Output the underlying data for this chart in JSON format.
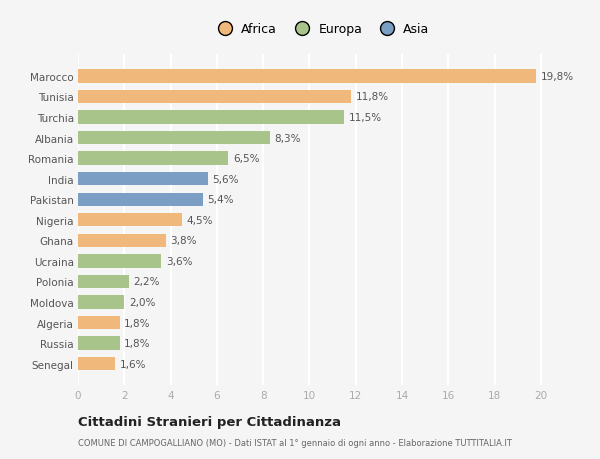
{
  "categories": [
    "Senegal",
    "Russia",
    "Algeria",
    "Moldova",
    "Polonia",
    "Ucraina",
    "Ghana",
    "Nigeria",
    "Pakistan",
    "India",
    "Romania",
    "Albania",
    "Turchia",
    "Tunisia",
    "Marocco"
  ],
  "values": [
    1.6,
    1.8,
    1.8,
    2.0,
    2.2,
    3.6,
    3.8,
    4.5,
    5.4,
    5.6,
    6.5,
    8.3,
    11.5,
    11.8,
    19.8
  ],
  "labels": [
    "1,6%",
    "1,8%",
    "1,8%",
    "2,0%",
    "2,2%",
    "3,6%",
    "3,8%",
    "4,5%",
    "5,4%",
    "5,6%",
    "6,5%",
    "8,3%",
    "11,5%",
    "11,8%",
    "19,8%"
  ],
  "colors": [
    "#f0b87a",
    "#a8c48a",
    "#f0b87a",
    "#a8c48a",
    "#a8c48a",
    "#a8c48a",
    "#f0b87a",
    "#f0b87a",
    "#7a9ec4",
    "#7a9ec4",
    "#a8c48a",
    "#a8c48a",
    "#a8c48a",
    "#f0b87a",
    "#f0b87a"
  ],
  "continent_colors": {
    "Africa": "#f0b87a",
    "Europa": "#a8c48a",
    "Asia": "#7a9ec4"
  },
  "xlim": [
    0,
    21
  ],
  "xticks": [
    0,
    2,
    4,
    6,
    8,
    10,
    12,
    14,
    16,
    18,
    20
  ],
  "title": "Cittadini Stranieri per Cittadinanza",
  "subtitle": "COMUNE DI CAMPOGALLIANO (MO) - Dati ISTAT al 1° gennaio di ogni anno - Elaborazione TUTTITALIA.IT",
  "bg_color": "#f5f5f5",
  "grid_color": "#ffffff",
  "label_color": "#555555",
  "tick_color": "#aaaaaa",
  "ytick_color": "#555555"
}
